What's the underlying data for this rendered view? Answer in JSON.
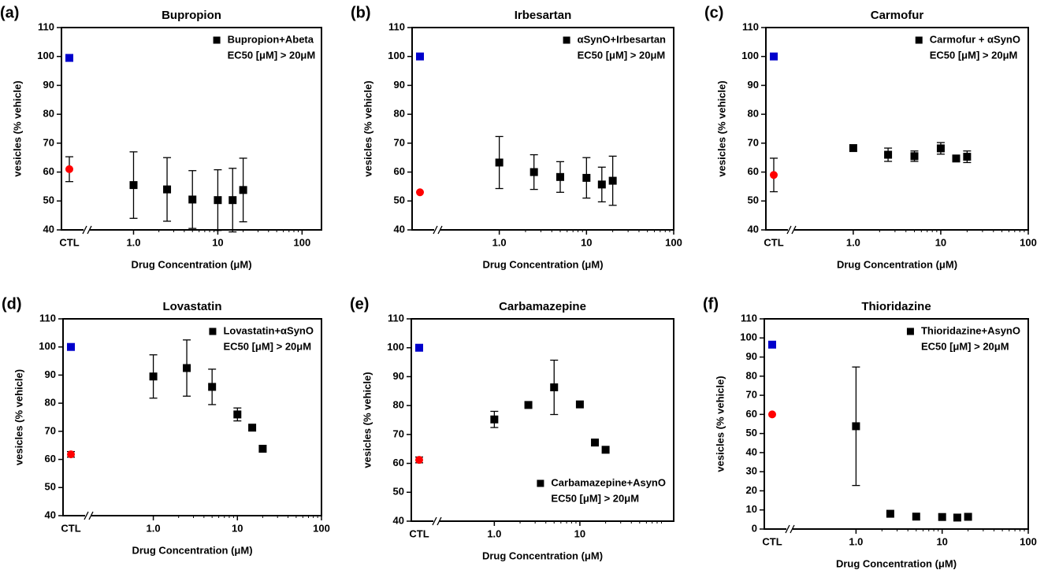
{
  "chart_data": [
    {
      "type": "scatter",
      "panel": "(a)",
      "title": "Bupropion",
      "xlabel": "Drug Concentration (μM)",
      "ylabel": "vesicles (% vehicle)",
      "xscale": "log",
      "xlim": [
        0.33,
        170
      ],
      "xticks": [
        {
          "value": 1,
          "label": "1.0"
        },
        10,
        100
      ],
      "ylim": [
        40,
        110
      ],
      "yticks": [
        40,
        50,
        60,
        70,
        80,
        90,
        100,
        110
      ],
      "legend": "upper right",
      "annotation": "EC50 [μM]  > 20μM",
      "control": {
        "label": "CTL",
        "points": [
          {
            "color": "#0000cc",
            "marker": "square",
            "value": 99.5
          },
          {
            "color": "#ff0000",
            "marker": "circle",
            "value": 61,
            "error": 4.3
          }
        ]
      },
      "series": [
        {
          "name": "Bupropion+Abeta",
          "color": "#000000",
          "marker": "square",
          "x": [
            1,
            2.5,
            5,
            10,
            15,
            20
          ],
          "values": [
            55.5,
            54,
            50.5,
            50.3,
            50.3,
            53.8
          ],
          "errors": [
            11.5,
            11,
            10,
            10.5,
            11,
            11
          ]
        }
      ]
    },
    {
      "type": "scatter",
      "panel": "(b)",
      "title": "Irbesartan",
      "xlabel": "Drug Concentration (μM)",
      "ylabel": "vesicles (% vehicle)",
      "xscale": "log",
      "xlim": [
        0.23,
        100
      ],
      "xticks": [
        {
          "value": 1,
          "label": "1.0"
        },
        10,
        100
      ],
      "ylim": [
        40,
        110
      ],
      "yticks": [
        40,
        50,
        60,
        70,
        80,
        90,
        100,
        110
      ],
      "legend": "upper right",
      "annotation": "EC50 [μM]  > 20μM",
      "control": {
        "label": null,
        "points": [
          {
            "color": "#0000cc",
            "marker": "square",
            "value": 100
          },
          {
            "color": "#ff0000",
            "marker": "circle",
            "value": 53
          }
        ]
      },
      "series": [
        {
          "name": "αSynO+Irbesartan",
          "color": "#000000",
          "marker": "square",
          "x": [
            1,
            2.5,
            5,
            10,
            15,
            20
          ],
          "values": [
            63.3,
            60,
            58.3,
            58,
            55.7,
            57
          ],
          "errors": [
            9,
            6,
            5.3,
            7,
            6,
            8.5
          ]
        }
      ]
    },
    {
      "type": "scatter",
      "panel": "(c)",
      "title": "Carmofur",
      "xlabel": "Drug Concentration (μM)",
      "ylabel": "vesicles (% vehicle)",
      "xscale": "log",
      "xlim": [
        0.23,
        100
      ],
      "xticks": [
        {
          "value": 1,
          "label": "1.0"
        },
        10,
        100
      ],
      "ylim": [
        40,
        110
      ],
      "yticks": [
        40,
        50,
        60,
        70,
        80,
        90,
        100,
        110
      ],
      "legend": "upper right",
      "annotation": "EC50 [μM]  > 20μM",
      "control": {
        "label": "CTL",
        "points": [
          {
            "color": "#0000cc",
            "marker": "square",
            "value": 100
          },
          {
            "color": "#ff0000",
            "marker": "circle",
            "value": 59,
            "error": 5.8
          }
        ]
      },
      "series": [
        {
          "name": "Carmofur + αSynO",
          "color": "#000000",
          "marker": "square",
          "x": [
            1,
            2.5,
            5,
            10,
            15,
            20
          ],
          "values": [
            68.3,
            66,
            65.5,
            68.2,
            64.7,
            65.3
          ],
          "errors": [
            null,
            2.3,
            1.8,
            2,
            null,
            2
          ]
        }
      ]
    },
    {
      "type": "scatter",
      "panel": "(d)",
      "title": "Lovastatin",
      "xlabel": "Drug Concentration (μM)",
      "ylabel": "vesicles (% vehicle)",
      "xscale": "log",
      "xlim": [
        0.2,
        100
      ],
      "xticks": [
        {
          "value": 1,
          "label": "1.0"
        },
        10,
        100
      ],
      "ylim": [
        40,
        110
      ],
      "yticks": [
        40,
        50,
        60,
        70,
        80,
        90,
        100,
        110
      ],
      "legend": "upper right",
      "annotation": "EC50 [μM]  > 20μM",
      "control": {
        "label": "CTL",
        "points": [
          {
            "color": "#0000cc",
            "marker": "square",
            "value": 100
          },
          {
            "color": "#ff0000",
            "marker": "circle",
            "value": 61.8,
            "error": 1
          }
        ]
      },
      "series": [
        {
          "name": "Lovastatin+αSynO",
          "color": "#000000",
          "marker": "square",
          "x": [
            1,
            2.5,
            5,
            10,
            15,
            20
          ],
          "values": [
            89.5,
            92.5,
            85.8,
            76,
            71.3,
            63.8
          ],
          "errors": [
            7.7,
            10,
            6.3,
            2.3,
            null,
            null
          ]
        }
      ]
    },
    {
      "type": "scatter",
      "panel": "(e)",
      "title": "Carbamazepine",
      "xlabel": "Drug Concentration (μM)",
      "ylabel": "vesicles (% vehicle)",
      "xscale": "log",
      "xlim": [
        0.25,
        125
      ],
      "xticks": [
        {
          "value": 1,
          "label": "1.0"
        },
        10
      ],
      "ylim": [
        40,
        110
      ],
      "yticks": [
        40,
        50,
        60,
        70,
        80,
        90,
        100,
        110
      ],
      "legend": "lower right",
      "annotation": "EC50 [μM] > 20μM",
      "control": {
        "label": "CTL",
        "points": [
          {
            "color": "#0000cc",
            "marker": "square",
            "value": 100
          },
          {
            "color": "#ff0000",
            "marker": "circle",
            "value": 61.2,
            "error": 1
          }
        ]
      },
      "series": [
        {
          "name": "Carbamazepine+AsynO",
          "color": "#000000",
          "marker": "square",
          "x": [
            1,
            2.5,
            5,
            10,
            15,
            20
          ],
          "values": [
            75.2,
            80.2,
            86.3,
            80.4,
            67.2,
            64.7
          ],
          "errors": [
            2.8,
            null,
            9.4,
            null,
            null,
            null
          ]
        }
      ]
    },
    {
      "type": "scatter",
      "panel": "(f)",
      "title": "Thioridazine",
      "xlabel": "Drug Concentration (μM)",
      "ylabel": "vesicles (% vehicle)",
      "xscale": "log",
      "xlim": [
        0.2,
        100
      ],
      "xticks": [
        {
          "value": 1,
          "label": "1.0"
        },
        10,
        100
      ],
      "ylim": [
        0,
        110
      ],
      "yticks": [
        0,
        10,
        20,
        30,
        40,
        50,
        60,
        70,
        80,
        90,
        100,
        110
      ],
      "legend": "upper right",
      "annotation": "EC50 [μM]  > 20μM",
      "control": {
        "label": "CTL",
        "points": [
          {
            "color": "#0000cc",
            "marker": "square",
            "value": 96.5
          },
          {
            "color": "#ff0000",
            "marker": "circle",
            "value": 60
          }
        ]
      },
      "series": [
        {
          "name": "Thioridazine+AsynO",
          "color": "#000000",
          "marker": "square",
          "x": [
            1,
            2.5,
            5,
            10,
            15,
            20
          ],
          "values": [
            53.8,
            8,
            6.5,
            6.3,
            6,
            6.4
          ],
          "errors": [
            31,
            null,
            null,
            null,
            null,
            null
          ]
        }
      ]
    }
  ]
}
